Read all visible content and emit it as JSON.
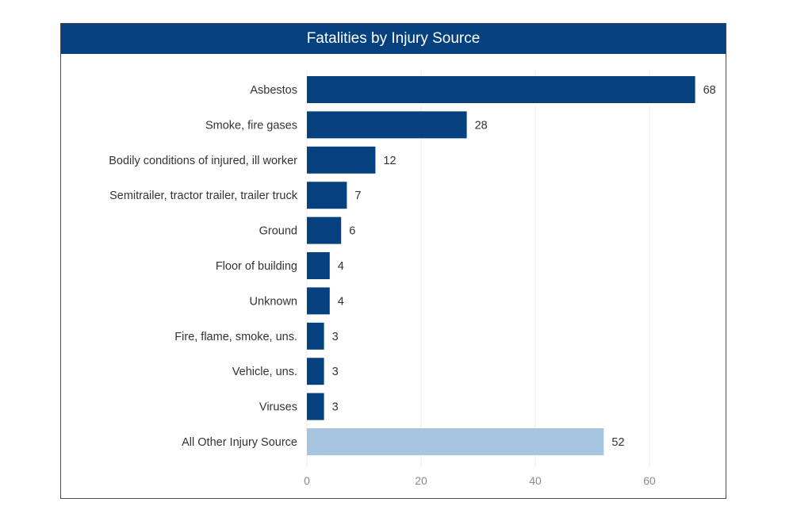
{
  "chart_data": {
    "type": "bar",
    "orientation": "horizontal",
    "title": "Fatalities by Injury Source",
    "categories": [
      "Asbestos",
      "Smoke, fire gases",
      "Bodily conditions of injured, ill worker",
      "Semitrailer, tractor trailer, trailer truck",
      "Ground",
      "Floor of building",
      "Unknown",
      "Fire, flame, smoke, uns.",
      "Vehicle, uns.",
      "Viruses",
      "All Other Injury Source"
    ],
    "values": [
      68,
      28,
      12,
      7,
      6,
      4,
      4,
      3,
      3,
      3,
      52
    ],
    "highlight": [
      false,
      false,
      false,
      false,
      false,
      false,
      false,
      false,
      false,
      false,
      true
    ],
    "xlim": [
      0,
      70
    ],
    "xticks": [
      0,
      20,
      40,
      60
    ],
    "xlabel": "",
    "ylabel": "",
    "grid": true,
    "data_labels": true
  },
  "colors": {
    "title_bg": "#05417f",
    "bar": "#05417f",
    "bar_highlight": "#a7c5e0",
    "grid": "#ececec"
  }
}
